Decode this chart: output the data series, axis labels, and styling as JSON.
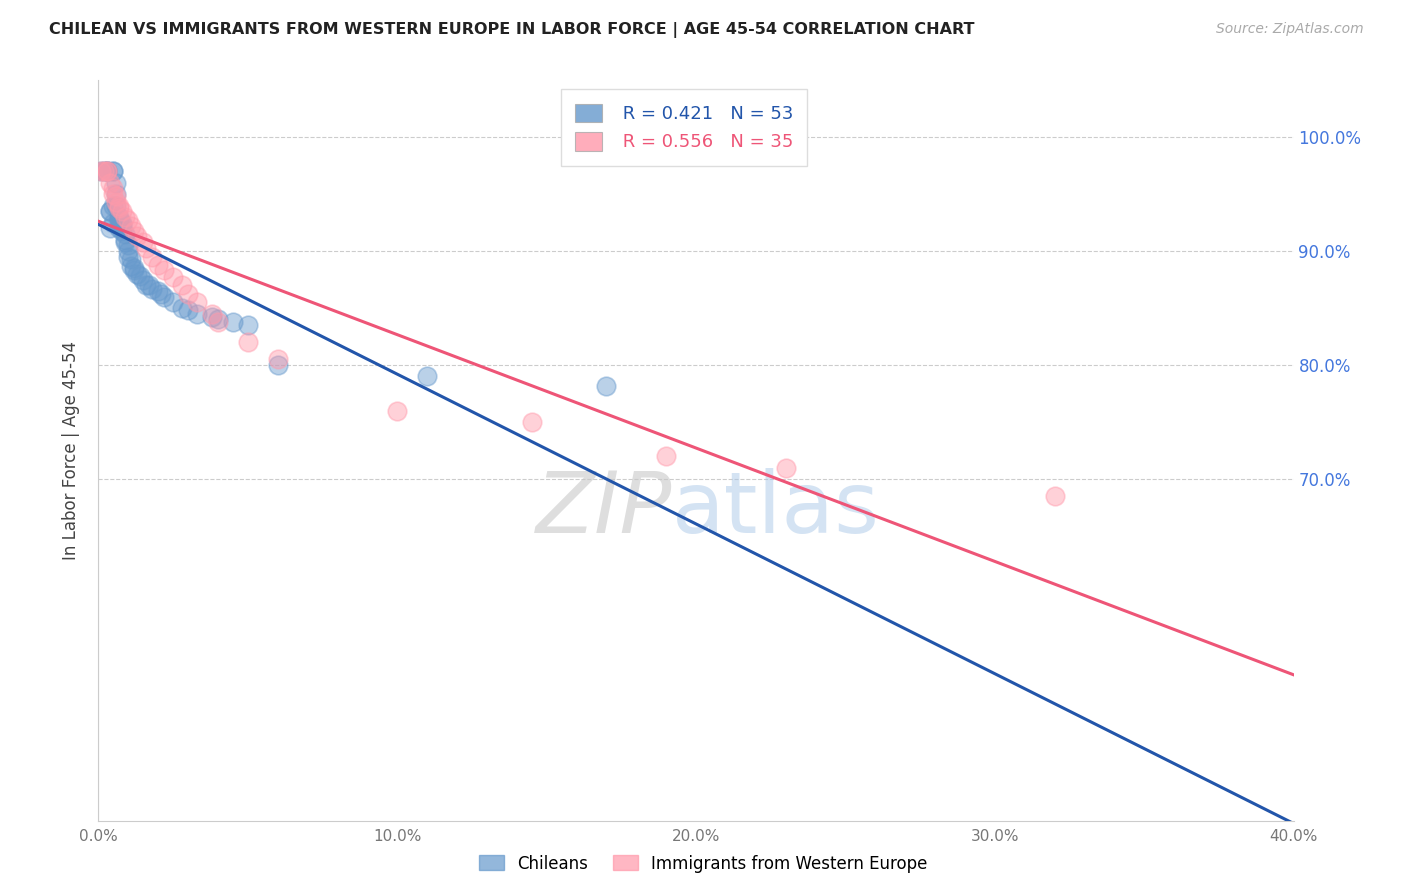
{
  "title": "CHILEAN VS IMMIGRANTS FROM WESTERN EUROPE IN LABOR FORCE | AGE 45-54 CORRELATION CHART",
  "source": "Source: ZipAtlas.com",
  "ylabel": "In Labor Force | Age 45-54",
  "xlim": [
    0.0,
    0.4
  ],
  "ylim": [
    0.4,
    1.05
  ],
  "yticks": [
    0.7,
    0.8,
    0.9,
    1.0
  ],
  "xticks": [
    0.0,
    0.1,
    0.2,
    0.3,
    0.4
  ],
  "xtick_labels": [
    "0.0%",
    "10.0%",
    "20.0%",
    "30.0%",
    "40.0%"
  ],
  "ytick_labels": [
    "70.0%",
    "80.0%",
    "90.0%",
    "100.0%"
  ],
  "blue_R": 0.421,
  "blue_N": 53,
  "pink_R": 0.556,
  "pink_N": 35,
  "blue_color": "#6699CC",
  "pink_color": "#FF99AA",
  "blue_line_color": "#2255AA",
  "pink_line_color": "#EE5577",
  "legend_blue_label": "Chileans",
  "legend_pink_label": "Immigrants from Western Europe",
  "watermark_zip": "ZIP",
  "watermark_atlas": "atlas",
  "blue_x": [
    0.001,
    0.002,
    0.003,
    0.003,
    0.003,
    0.004,
    0.004,
    0.004,
    0.005,
    0.005,
    0.005,
    0.005,
    0.006,
    0.006,
    0.006,
    0.007,
    0.007,
    0.007,
    0.007,
    0.008,
    0.008,
    0.008,
    0.008,
    0.009,
    0.009,
    0.009,
    0.01,
    0.01,
    0.01,
    0.011,
    0.011,
    0.012,
    0.012,
    0.013,
    0.014,
    0.015,
    0.016,
    0.017,
    0.018,
    0.02,
    0.021,
    0.022,
    0.025,
    0.028,
    0.03,
    0.033,
    0.038,
    0.04,
    0.045,
    0.05,
    0.06,
    0.11,
    0.17
  ],
  "blue_y": [
    0.97,
    0.97,
    0.97,
    0.97,
    0.97,
    0.935,
    0.935,
    0.92,
    0.97,
    0.97,
    0.94,
    0.925,
    0.96,
    0.95,
    0.94,
    0.93,
    0.928,
    0.925,
    0.92,
    0.925,
    0.923,
    0.92,
    0.918,
    0.915,
    0.91,
    0.908,
    0.905,
    0.9,
    0.895,
    0.893,
    0.887,
    0.885,
    0.883,
    0.88,
    0.878,
    0.875,
    0.87,
    0.87,
    0.867,
    0.865,
    0.862,
    0.86,
    0.855,
    0.85,
    0.848,
    0.845,
    0.842,
    0.84,
    0.838,
    0.835,
    0.8,
    0.79,
    0.782
  ],
  "pink_x": [
    0.001,
    0.002,
    0.003,
    0.003,
    0.004,
    0.005,
    0.005,
    0.006,
    0.006,
    0.007,
    0.007,
    0.008,
    0.009,
    0.01,
    0.011,
    0.012,
    0.013,
    0.015,
    0.016,
    0.018,
    0.02,
    0.022,
    0.025,
    0.028,
    0.03,
    0.033,
    0.038,
    0.04,
    0.05,
    0.06,
    0.1,
    0.145,
    0.19,
    0.23,
    0.32
  ],
  "pink_y": [
    0.97,
    0.97,
    0.97,
    0.97,
    0.96,
    0.955,
    0.95,
    0.948,
    0.943,
    0.94,
    0.938,
    0.935,
    0.93,
    0.927,
    0.922,
    0.918,
    0.913,
    0.908,
    0.903,
    0.895,
    0.888,
    0.883,
    0.877,
    0.87,
    0.862,
    0.855,
    0.845,
    0.838,
    0.82,
    0.805,
    0.76,
    0.75,
    0.72,
    0.71,
    0.685
  ]
}
